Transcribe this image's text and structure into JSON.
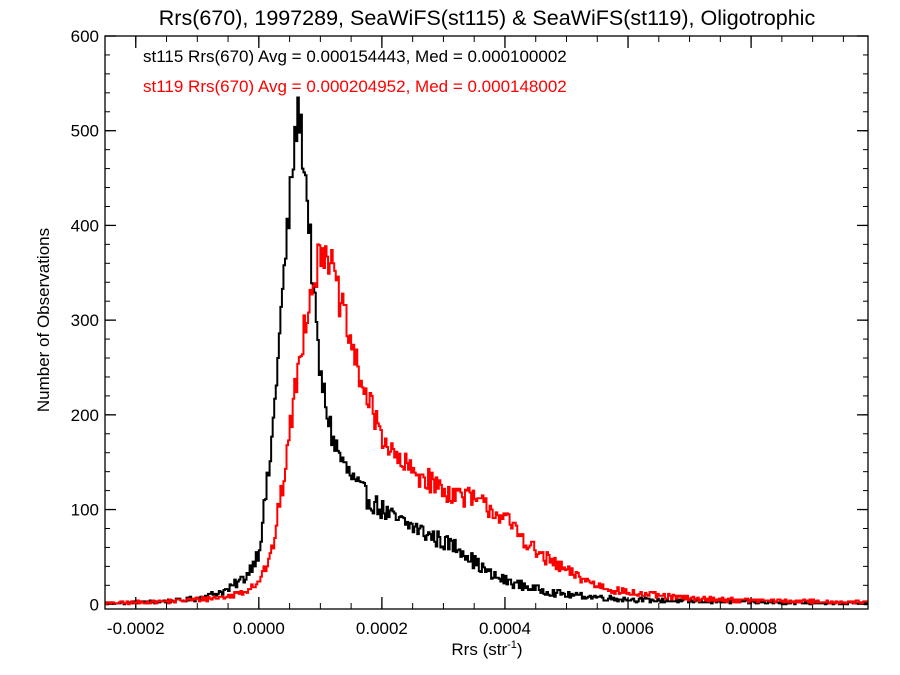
{
  "chart_data": {
    "type": "step",
    "title": "Rrs(670), 1997289, SeaWiFS(st115) & SeaWiFS(st119), Oligotrophic",
    "xlabel_main": "Rrs (str",
    "xlabel_sup": "-1",
    "xlabel_close": ")",
    "ylabel": "Number of Observations",
    "xlim": [
      -0.00025,
      0.00099
    ],
    "ylim": [
      -5,
      600
    ],
    "xticks": [
      -0.0002,
      0.0,
      0.0002,
      0.0004,
      0.0006,
      0.0008
    ],
    "xtick_labels": [
      "-0.0002",
      "0.0000",
      "0.0002",
      "0.0004",
      "0.0006",
      "0.0008"
    ],
    "xminor_step": 5e-05,
    "yticks": [
      0,
      100,
      200,
      300,
      400,
      500,
      600
    ],
    "ytick_labels": [
      "0",
      "100",
      "200",
      "300",
      "400",
      "500",
      "600"
    ],
    "yminor_step": 20,
    "bin_start": -0.00025,
    "bin_width": 2.5e-06,
    "legend": [
      {
        "text": "st115 Rrs(670) Avg = 0.000154443, Med = 0.000100002",
        "color": "#000000"
      },
      {
        "text": "st119 Rrs(670) Avg = 0.000204952, Med = 0.000148002",
        "color": "#ff0000"
      }
    ],
    "series": [
      {
        "name": "st115",
        "color": "#000000",
        "profile": [
          [
            -0.00025,
            1
          ],
          [
            -0.00015,
            3
          ],
          [
            -0.0001,
            6
          ],
          [
            -5e-05,
            15
          ],
          [
            -2e-05,
            30
          ],
          [
            0.0,
            55
          ],
          [
            2e-05,
            160
          ],
          [
            4e-05,
            340
          ],
          [
            6e-05,
            500
          ],
          [
            6.6e-05,
            520
          ],
          [
            7e-05,
            490
          ],
          [
            8e-05,
            420
          ],
          [
            9e-05,
            320
          ],
          [
            0.0001,
            240
          ],
          [
            0.00012,
            175
          ],
          [
            0.00014,
            145
          ],
          [
            0.00016,
            125
          ],
          [
            0.00018,
            110
          ],
          [
            0.0002,
            100
          ],
          [
            0.00022,
            90
          ],
          [
            0.00025,
            82
          ],
          [
            0.00028,
            72
          ],
          [
            0.0003,
            66
          ],
          [
            0.00033,
            58
          ],
          [
            0.00035,
            45
          ],
          [
            0.00038,
            30
          ],
          [
            0.0004,
            25
          ],
          [
            0.00045,
            16
          ],
          [
            0.0005,
            10
          ],
          [
            0.0006,
            5
          ],
          [
            0.0007,
            3
          ],
          [
            0.0008,
            2
          ],
          [
            0.00099,
            1
          ]
        ]
      },
      {
        "name": "st119",
        "color": "#ff0000",
        "profile": [
          [
            -0.00025,
            1
          ],
          [
            -0.00015,
            3
          ],
          [
            -0.0001,
            5
          ],
          [
            -5e-05,
            8
          ],
          [
            -2e-05,
            15
          ],
          [
            0.0,
            25
          ],
          [
            2e-05,
            50
          ],
          [
            4e-05,
            130
          ],
          [
            6e-05,
            230
          ],
          [
            8e-05,
            320
          ],
          [
            0.0001,
            370
          ],
          [
            0.00011,
            380
          ],
          [
            0.00012,
            350
          ],
          [
            0.00014,
            300
          ],
          [
            0.00016,
            250
          ],
          [
            0.00018,
            210
          ],
          [
            0.0002,
            180
          ],
          [
            0.00022,
            155
          ],
          [
            0.00025,
            140
          ],
          [
            0.00028,
            130
          ],
          [
            0.0003,
            120
          ],
          [
            0.00033,
            115
          ],
          [
            0.00035,
            110
          ],
          [
            0.00038,
            100
          ],
          [
            0.0004,
            90
          ],
          [
            0.00043,
            70
          ],
          [
            0.00045,
            55
          ],
          [
            0.0005,
            35
          ],
          [
            0.00055,
            20
          ],
          [
            0.0006,
            12
          ],
          [
            0.0007,
            6
          ],
          [
            0.0008,
            4
          ],
          [
            0.00099,
            2
          ]
        ]
      }
    ]
  }
}
